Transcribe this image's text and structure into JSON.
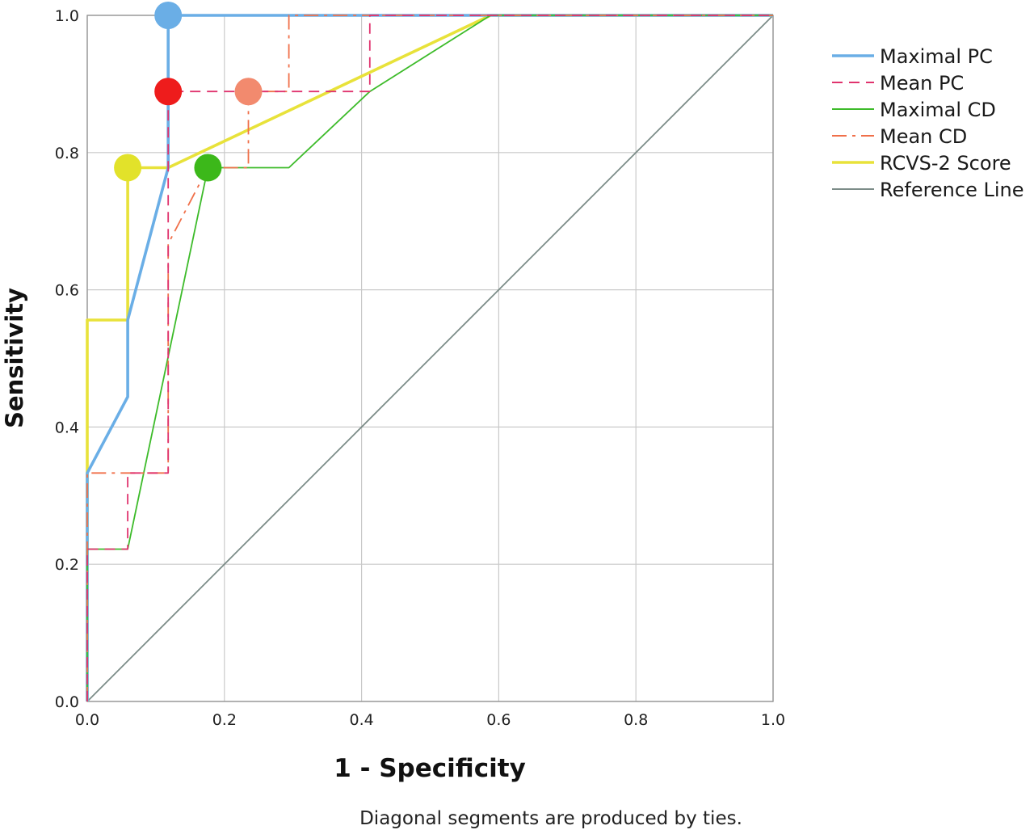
{
  "chart_data": {
    "type": "line",
    "title": "",
    "xlabel": "1 - Specificity",
    "ylabel": "Sensitivity",
    "footnote": "Diagonal segments are produced by ties.",
    "xlim": [
      0,
      1
    ],
    "ylim": [
      0,
      1
    ],
    "xticks": [
      "0.0",
      "0.2",
      "0.4",
      "0.6",
      "0.8",
      "1.0"
    ],
    "yticks": [
      "0.0",
      "0.2",
      "0.4",
      "0.6",
      "0.8",
      "1.0"
    ],
    "grid": true,
    "legend_position": "right",
    "series": [
      {
        "name": "Maximal PC",
        "color": "#6aaee6",
        "dash": "solid",
        "width": "thick",
        "points": [
          [
            0,
            0
          ],
          [
            0,
            0.333
          ],
          [
            0.059,
            0.444
          ],
          [
            0.059,
            0.556
          ],
          [
            0.118,
            0.778
          ],
          [
            0.118,
            1.0
          ],
          [
            0.588,
            1.0
          ],
          [
            1.0,
            1.0
          ]
        ]
      },
      {
        "name": "Mean PC",
        "color": "#e0336e",
        "dash": "dashed",
        "width": "thin",
        "points": [
          [
            0,
            0
          ],
          [
            0,
            0.222
          ],
          [
            0.059,
            0.222
          ],
          [
            0.059,
            0.333
          ],
          [
            0.118,
            0.333
          ],
          [
            0.118,
            0.667
          ],
          [
            0.118,
            0.889
          ],
          [
            0.412,
            0.889
          ],
          [
            0.412,
            1.0
          ],
          [
            1.0,
            1.0
          ]
        ]
      },
      {
        "name": "Maximal CD",
        "color": "#3dbb2a",
        "dash": "solid",
        "width": "thin",
        "points": [
          [
            0,
            0
          ],
          [
            0,
            0.222
          ],
          [
            0.059,
            0.222
          ],
          [
            0.176,
            0.778
          ],
          [
            0.294,
            0.778
          ],
          [
            0.412,
            0.889
          ],
          [
            0.588,
            1.0
          ],
          [
            1.0,
            1.0
          ]
        ]
      },
      {
        "name": "Mean CD",
        "color": "#f0704a",
        "dash": "dashdot",
        "width": "thin",
        "points": [
          [
            0,
            0
          ],
          [
            0,
            0.333
          ],
          [
            0.118,
            0.333
          ],
          [
            0.118,
            0.667
          ],
          [
            0.176,
            0.778
          ],
          [
            0.235,
            0.778
          ],
          [
            0.235,
            0.889
          ],
          [
            0.294,
            0.889
          ],
          [
            0.294,
            1.0
          ],
          [
            1.0,
            1.0
          ]
        ]
      },
      {
        "name": "RCVS-2 Score",
        "color": "#e8e23a",
        "dash": "solid",
        "width": "thick",
        "points": [
          [
            0,
            0
          ],
          [
            0,
            0.556
          ],
          [
            0.059,
            0.556
          ],
          [
            0.059,
            0.778
          ],
          [
            0.118,
            0.778
          ],
          [
            0.588,
            1.0
          ],
          [
            1.0,
            1.0
          ]
        ]
      },
      {
        "name": "Reference Line",
        "color": "#7c8c88",
        "dash": "solid",
        "width": "thin",
        "points": [
          [
            0,
            0
          ],
          [
            1,
            1
          ]
        ]
      }
    ],
    "markers": [
      {
        "x": 0.118,
        "y": 1.0,
        "color": "#6aaee6"
      },
      {
        "x": 0.118,
        "y": 0.889,
        "color": "#ee1c1c"
      },
      {
        "x": 0.235,
        "y": 0.889,
        "color": "#f28a6e"
      },
      {
        "x": 0.059,
        "y": 0.778,
        "color": "#e2e22a"
      },
      {
        "x": 0.176,
        "y": 0.778,
        "color": "#3cb81a"
      }
    ]
  }
}
